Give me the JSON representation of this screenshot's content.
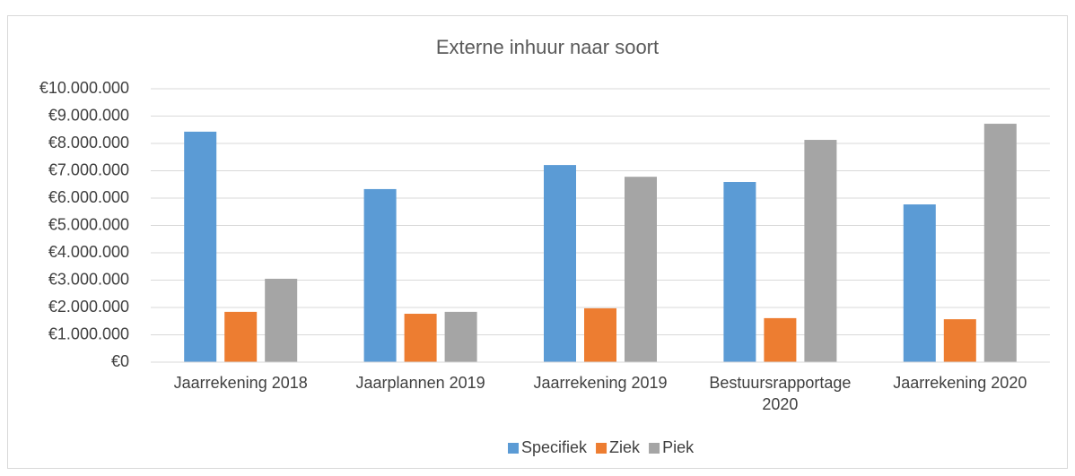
{
  "chart_data": {
    "type": "bar",
    "title": "Externe inhuur naar soort",
    "categories": [
      "Jaarrekening 2018",
      "Jaarplannen 2019",
      "Jaarrekening 2019",
      "Bestuursrapportage 2020",
      "Jaarrekening 2020"
    ],
    "series": [
      {
        "name": "Specifiek",
        "color": "#5b9bd5",
        "values": [
          8430000,
          6330000,
          7210000,
          6590000,
          5770000
        ]
      },
      {
        "name": "Ziek",
        "color": "#ed7d31",
        "values": [
          1840000,
          1770000,
          1970000,
          1610000,
          1570000
        ]
      },
      {
        "name": "Piek",
        "color": "#a5a5a5",
        "values": [
          3050000,
          1840000,
          6780000,
          8130000,
          8720000
        ]
      }
    ],
    "ylim": [
      0,
      10000000
    ],
    "yticks": [
      {
        "value": 0,
        "label": "€0"
      },
      {
        "value": 1000000,
        "label": "€1.000.000"
      },
      {
        "value": 2000000,
        "label": "€2.000.000"
      },
      {
        "value": 3000000,
        "label": "€3.000.000"
      },
      {
        "value": 4000000,
        "label": "€4.000.000"
      },
      {
        "value": 5000000,
        "label": "€5.000.000"
      },
      {
        "value": 6000000,
        "label": "€6.000.000"
      },
      {
        "value": 7000000,
        "label": "€7.000.000"
      },
      {
        "value": 8000000,
        "label": "€8.000.000"
      },
      {
        "value": 9000000,
        "label": "€9.000.000"
      },
      {
        "value": 10000000,
        "label": "€10.000.000"
      }
    ],
    "grid": true,
    "legend": "bottom"
  }
}
